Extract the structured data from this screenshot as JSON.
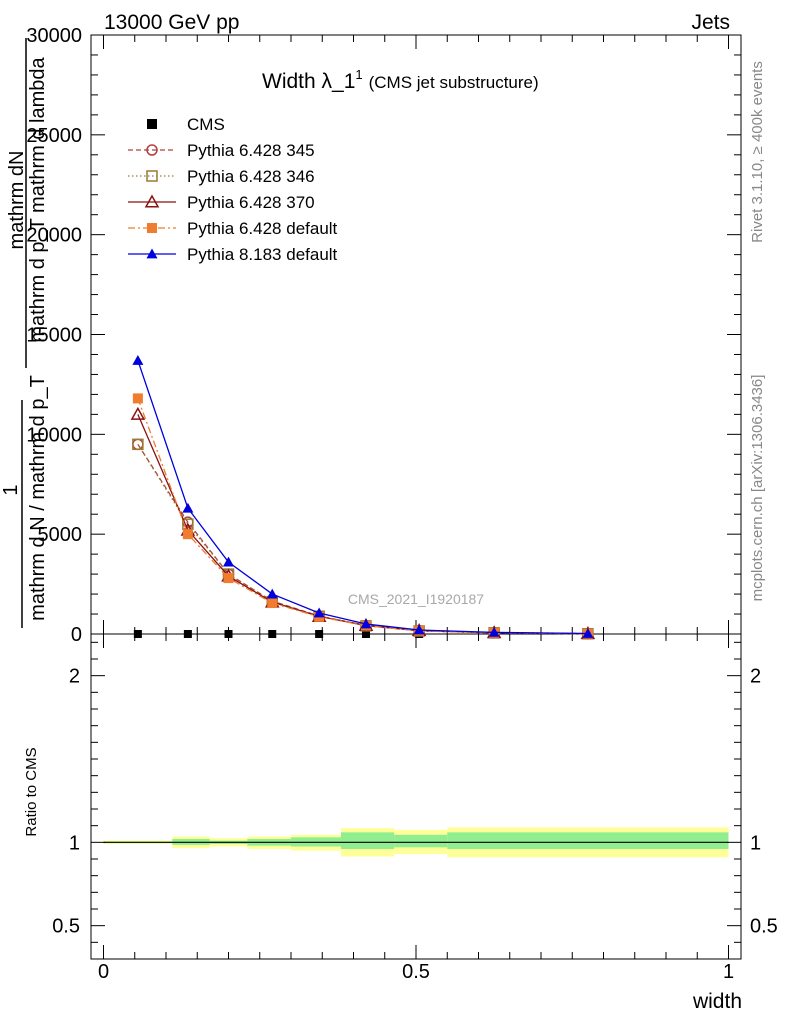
{
  "header": {
    "left": "13000 GeV pp",
    "right": "Jets"
  },
  "plot_title": {
    "main": "Width λ_1",
    "sup": "1",
    "sub": "(CMS jet substructure)"
  },
  "y_axis_label": {
    "line1": "mathrm dN",
    "line2": "mathrm d p_T mathrm d lambda",
    "line3": "1",
    "line4": "mathrm d N / mathrm d p_T"
  },
  "side_label_top": "Rivet 3.1.10, ≥ 400k events",
  "side_label_bottom": "mcplots.cern.ch [arXiv:1306.3436]",
  "watermark": "CMS_2021_I1920187",
  "ratio_ylabel": "Ratio to CMS",
  "xlabel": "width",
  "chart_data": [
    {
      "type": "line",
      "panel": "main",
      "xlim": [
        -0.02,
        1.02
      ],
      "ylim": [
        0,
        30000
      ],
      "x_ticks": [
        0,
        0.5,
        1
      ],
      "y_ticks": [
        0,
        5000,
        10000,
        15000,
        20000,
        25000,
        30000
      ],
      "y_tick_labels": [
        "0",
        "5000",
        "10000",
        "15000",
        "20000",
        "25000",
        "30000"
      ],
      "x": [
        0.055,
        0.135,
        0.2,
        0.27,
        0.345,
        0.42,
        0.505,
        0.625,
        0.775
      ],
      "series": [
        {
          "name": "CMS",
          "values": [
            0,
            0,
            0,
            0,
            0,
            0,
            0,
            0,
            0
          ],
          "color": "#000000",
          "marker": "square-filled",
          "dash": "none"
        },
        {
          "name": "Pythia 6.428 345",
          "values": [
            9500,
            5600,
            3000,
            1650,
            900,
            420,
            160,
            60,
            15
          ],
          "color": "#b04040",
          "marker": "circle-open",
          "dash": "5,3"
        },
        {
          "name": "Pythia 6.428 346",
          "values": [
            9500,
            5500,
            3000,
            1620,
            890,
            410,
            150,
            60,
            15
          ],
          "color": "#9a7a30",
          "marker": "square-open",
          "dash": "1.5,2.5"
        },
        {
          "name": "Pythia 6.428 370",
          "values": [
            11000,
            5200,
            2900,
            1600,
            880,
            430,
            170,
            65,
            20
          ],
          "color": "#8b1010",
          "marker": "triangle-open",
          "dash": "none"
        },
        {
          "name": "Pythia 6.428 default",
          "values": [
            11800,
            5000,
            2800,
            1550,
            860,
            420,
            160,
            60,
            18
          ],
          "color": "#f07c30",
          "marker": "square-filled",
          "dash": "7,3,2,3"
        },
        {
          "name": "Pythia 8.183 default",
          "values": [
            13700,
            6300,
            3600,
            2000,
            1050,
            500,
            200,
            80,
            25
          ],
          "color": "#0000dd",
          "marker": "triangle-filled",
          "dash": "none"
        }
      ]
    },
    {
      "type": "area",
      "panel": "ratio",
      "xlim": [
        -0.02,
        1.02
      ],
      "ylim": [
        0.3,
        2.25
      ],
      "y_ticks": [
        0.5,
        1,
        2
      ],
      "y_tick_labels": [
        "0.5",
        "1",
        "2"
      ],
      "x_ticks": [
        0,
        0.5,
        1
      ],
      "x_tick_labels": [
        "0",
        "0.5",
        "1"
      ],
      "bins": [
        {
          "lo": 0.0,
          "hi": 0.11,
          "inner": [
            0.995,
            1.005
          ],
          "outer": [
            0.99,
            1.01
          ]
        },
        {
          "lo": 0.11,
          "hi": 0.17,
          "inner": [
            0.985,
            1.02
          ],
          "outer": [
            0.965,
            1.035
          ]
        },
        {
          "lo": 0.17,
          "hi": 0.23,
          "inner": [
            0.99,
            1.01
          ],
          "outer": [
            0.975,
            1.025
          ]
        },
        {
          "lo": 0.23,
          "hi": 0.3,
          "inner": [
            0.98,
            1.02
          ],
          "outer": [
            0.96,
            1.035
          ]
        },
        {
          "lo": 0.3,
          "hi": 0.38,
          "inner": [
            0.975,
            1.03
          ],
          "outer": [
            0.95,
            1.045
          ]
        },
        {
          "lo": 0.38,
          "hi": 0.465,
          "inner": [
            0.96,
            1.06
          ],
          "outer": [
            0.915,
            1.085
          ]
        },
        {
          "lo": 0.465,
          "hi": 0.55,
          "inner": [
            0.97,
            1.045
          ],
          "outer": [
            0.93,
            1.075
          ]
        },
        {
          "lo": 0.55,
          "hi": 1.0,
          "inner": [
            0.96,
            1.06
          ],
          "outer": [
            0.91,
            1.09
          ]
        }
      ],
      "inner_color": "#90ee90",
      "outer_color": "#ffff99",
      "reference_line": 1
    }
  ]
}
